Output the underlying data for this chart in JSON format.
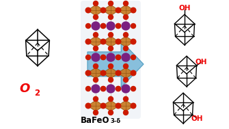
{
  "bg_color": "#ffffff",
  "arrow_face_color": "#7ab8d9",
  "arrow_edge_color": "#4a9abf",
  "o2_color": "#ee0000",
  "oh_color": "#ee0000",
  "bafeo_label": "BaFeO",
  "bafeo_sub": "3-δ",
  "o2_label": "O",
  "o2_sub": "2",
  "orange": "#c87820",
  "dark_orange": "#8b5010",
  "red_atom": "#cc1a00",
  "purple_atom": "#7a2080",
  "glow_color": "#e0e8f0",
  "line_color": "#000000"
}
